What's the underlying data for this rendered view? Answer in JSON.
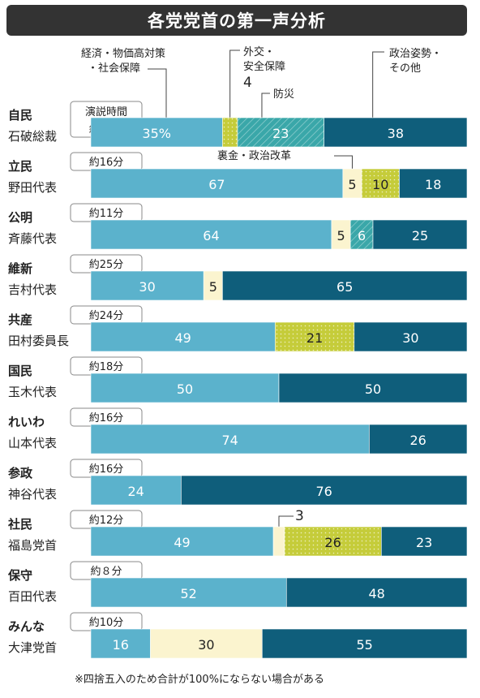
{
  "title": "各党党首の第一声分析",
  "footnote": "※四捨五入のため合計が100%にならない場合がある",
  "colors": {
    "economy": "#5bb2cc",
    "foreign_security": "#c5cc3a",
    "disaster": "#3aa7a9",
    "politics_other": "#0f5e7b",
    "scandal_reform": "#fbf4cf",
    "title_bg": "#333333"
  },
  "chart_data": {
    "type": "bar",
    "orientation": "horizontal",
    "stacked": true,
    "unit": "%",
    "speech_time_header": "演説時間",
    "legend": {
      "economy": "経済・物価高対策・社会保障",
      "foreign_security": "外交・安全保障",
      "disaster": "防災",
      "scandal_reform": "裏金・政治改革",
      "politics_other": "政治姿勢・その他"
    },
    "callouts": {
      "jimin_foreign_security": "4",
      "shamin_scandal_reform": "3"
    },
    "parties": [
      {
        "party": "自民",
        "leader": "石破総裁",
        "time": "約18分",
        "segments": [
          {
            "cat": "economy",
            "value": 35,
            "label": "35%"
          },
          {
            "cat": "foreign_security",
            "value": 4,
            "label": ""
          },
          {
            "cat": "disaster",
            "value": 23,
            "label": "23"
          },
          {
            "cat": "politics_other",
            "value": 38,
            "label": "38"
          }
        ]
      },
      {
        "party": "立民",
        "leader": "野田代表",
        "time": "約16分",
        "segments": [
          {
            "cat": "economy",
            "value": 67,
            "label": "67"
          },
          {
            "cat": "scandal_reform",
            "value": 5,
            "label": "5"
          },
          {
            "cat": "foreign_security",
            "value": 10,
            "label": "10"
          },
          {
            "cat": "politics_other",
            "value": 18,
            "label": "18"
          }
        ]
      },
      {
        "party": "公明",
        "leader": "斉藤代表",
        "time": "約11分",
        "segments": [
          {
            "cat": "economy",
            "value": 64,
            "label": "64"
          },
          {
            "cat": "scandal_reform",
            "value": 5,
            "label": "5"
          },
          {
            "cat": "disaster",
            "value": 6,
            "label": "6"
          },
          {
            "cat": "politics_other",
            "value": 25,
            "label": "25"
          }
        ]
      },
      {
        "party": "維新",
        "leader": "吉村代表",
        "time": "約25分",
        "segments": [
          {
            "cat": "economy",
            "value": 30,
            "label": "30"
          },
          {
            "cat": "scandal_reform",
            "value": 5,
            "label": "5"
          },
          {
            "cat": "politics_other",
            "value": 65,
            "label": "65"
          }
        ]
      },
      {
        "party": "共産",
        "leader": "田村委員長",
        "time": "約24分",
        "segments": [
          {
            "cat": "economy",
            "value": 49,
            "label": "49"
          },
          {
            "cat": "foreign_security",
            "value": 21,
            "label": "21"
          },
          {
            "cat": "politics_other",
            "value": 30,
            "label": "30"
          }
        ]
      },
      {
        "party": "国民",
        "leader": "玉木代表",
        "time": "約18分",
        "segments": [
          {
            "cat": "economy",
            "value": 50,
            "label": "50"
          },
          {
            "cat": "politics_other",
            "value": 50,
            "label": "50"
          }
        ]
      },
      {
        "party": "れいわ",
        "leader": "山本代表",
        "time": "約16分",
        "segments": [
          {
            "cat": "economy",
            "value": 74,
            "label": "74"
          },
          {
            "cat": "politics_other",
            "value": 26,
            "label": "26"
          }
        ]
      },
      {
        "party": "参政",
        "leader": "神谷代表",
        "time": "約16分",
        "segments": [
          {
            "cat": "economy",
            "value": 24,
            "label": "24"
          },
          {
            "cat": "politics_other",
            "value": 76,
            "label": "76"
          }
        ]
      },
      {
        "party": "社民",
        "leader": "福島党首",
        "time": "約12分",
        "segments": [
          {
            "cat": "economy",
            "value": 49,
            "label": "49"
          },
          {
            "cat": "scandal_reform",
            "value": 3,
            "label": ""
          },
          {
            "cat": "foreign_security",
            "value": 26,
            "label": "26"
          },
          {
            "cat": "politics_other",
            "value": 23,
            "label": "23"
          }
        ]
      },
      {
        "party": "保守",
        "leader": "百田代表",
        "time": "約８分",
        "segments": [
          {
            "cat": "economy",
            "value": 52,
            "label": "52"
          },
          {
            "cat": "politics_other",
            "value": 48,
            "label": "48"
          }
        ]
      },
      {
        "party": "みんな",
        "leader": "大津党首",
        "time": "約10分",
        "segments": [
          {
            "cat": "economy",
            "value": 16,
            "label": "16"
          },
          {
            "cat": "scandal_reform",
            "value": 30,
            "label": "30"
          },
          {
            "cat": "politics_other",
            "value": 55,
            "label": "55"
          }
        ]
      }
    ]
  }
}
